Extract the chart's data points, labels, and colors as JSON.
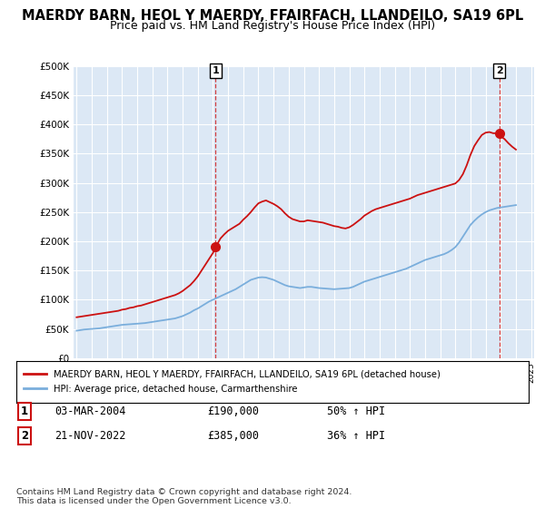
{
  "title": "MAERDY BARN, HEOL Y MAERDY, FFAIRFACH, LLANDEILO, SA19 6PL",
  "subtitle": "Price paid vs. HM Land Registry's House Price Index (HPI)",
  "title_fontsize": 10.5,
  "subtitle_fontsize": 9,
  "ylim": [
    0,
    500000
  ],
  "yticks": [
    0,
    50000,
    100000,
    150000,
    200000,
    250000,
    300000,
    350000,
    400000,
    450000,
    500000
  ],
  "ytick_labels": [
    "£0",
    "£50K",
    "£100K",
    "£150K",
    "£200K",
    "£250K",
    "£300K",
    "£350K",
    "£400K",
    "£450K",
    "£500K"
  ],
  "x_start_year": 1995,
  "x_end_year": 2025,
  "hpi_color": "#7aaedc",
  "price_color": "#cc1111",
  "vline_color": "#cc1111",
  "marker1_year": 2004.17,
  "marker1_value": 190000,
  "marker2_year": 2022.9,
  "marker2_value": 385000,
  "legend_line1": "MAERDY BARN, HEOL Y MAERDY, FFAIRFACH, LLANDEILO, SA19 6PL (detached house)",
  "legend_line2": "HPI: Average price, detached house, Carmarthenshire",
  "table_rows": [
    {
      "num": "1",
      "date": "03-MAR-2004",
      "price": "£190,000",
      "hpi": "50% ↑ HPI"
    },
    {
      "num": "2",
      "date": "21-NOV-2022",
      "price": "£385,000",
      "hpi": "36% ↑ HPI"
    }
  ],
  "footnote": "Contains HM Land Registry data © Crown copyright and database right 2024.\nThis data is licensed under the Open Government Licence v3.0.",
  "plot_background": "#dce8f5",
  "red_x": [
    1995.0,
    1995.25,
    1995.5,
    1995.75,
    1996.0,
    1996.25,
    1996.5,
    1996.75,
    1997.0,
    1997.25,
    1997.5,
    1997.75,
    1998.0,
    1998.25,
    1998.5,
    1998.75,
    1999.0,
    1999.25,
    1999.5,
    1999.75,
    2000.0,
    2000.25,
    2000.5,
    2000.75,
    2001.0,
    2001.25,
    2001.5,
    2001.75,
    2002.0,
    2002.25,
    2002.5,
    2002.75,
    2003.0,
    2003.25,
    2003.5,
    2003.75,
    2004.0,
    2004.17,
    2004.5,
    2004.75,
    2005.0,
    2005.25,
    2005.5,
    2005.75,
    2006.0,
    2006.25,
    2006.5,
    2006.75,
    2007.0,
    2007.25,
    2007.5,
    2007.75,
    2008.0,
    2008.25,
    2008.5,
    2008.75,
    2009.0,
    2009.25,
    2009.5,
    2009.75,
    2010.0,
    2010.25,
    2010.5,
    2010.75,
    2011.0,
    2011.25,
    2011.5,
    2011.75,
    2012.0,
    2012.25,
    2012.5,
    2012.75,
    2013.0,
    2013.25,
    2013.5,
    2013.75,
    2014.0,
    2014.25,
    2014.5,
    2014.75,
    2015.0,
    2015.25,
    2015.5,
    2015.75,
    2016.0,
    2016.25,
    2016.5,
    2016.75,
    2017.0,
    2017.25,
    2017.5,
    2017.75,
    2018.0,
    2018.25,
    2018.5,
    2018.75,
    2019.0,
    2019.25,
    2019.5,
    2019.75,
    2020.0,
    2020.25,
    2020.5,
    2020.75,
    2021.0,
    2021.25,
    2021.5,
    2021.75,
    2022.0,
    2022.25,
    2022.5,
    2022.9,
    2023.0,
    2023.25,
    2023.5,
    2023.75,
    2024.0
  ],
  "red_y": [
    70000,
    71000,
    72000,
    73000,
    74000,
    75000,
    76000,
    77000,
    78000,
    79000,
    80000,
    81000,
    83000,
    84000,
    86000,
    87000,
    89000,
    90000,
    92000,
    94000,
    96000,
    98000,
    100000,
    102000,
    104000,
    106000,
    108000,
    111000,
    115000,
    120000,
    125000,
    132000,
    140000,
    150000,
    160000,
    170000,
    180000,
    190000,
    205000,
    212000,
    218000,
    222000,
    226000,
    230000,
    237000,
    243000,
    250000,
    258000,
    265000,
    268000,
    270000,
    267000,
    264000,
    260000,
    255000,
    248000,
    242000,
    238000,
    236000,
    234000,
    234000,
    236000,
    235000,
    234000,
    233000,
    232000,
    230000,
    228000,
    226000,
    225000,
    223000,
    222000,
    224000,
    228000,
    233000,
    238000,
    244000,
    248000,
    252000,
    255000,
    257000,
    259000,
    261000,
    263000,
    265000,
    267000,
    269000,
    271000,
    273000,
    276000,
    279000,
    281000,
    283000,
    285000,
    287000,
    289000,
    291000,
    293000,
    295000,
    297000,
    299000,
    305000,
    315000,
    330000,
    348000,
    363000,
    373000,
    382000,
    386000,
    387000,
    385000,
    385000,
    380000,
    375000,
    368000,
    362000,
    357000
  ],
  "blue_x": [
    1995.0,
    1995.25,
    1995.5,
    1995.75,
    1996.0,
    1996.25,
    1996.5,
    1996.75,
    1997.0,
    1997.25,
    1997.5,
    1997.75,
    1998.0,
    1998.25,
    1998.5,
    1998.75,
    1999.0,
    1999.25,
    1999.5,
    1999.75,
    2000.0,
    2000.25,
    2000.5,
    2000.75,
    2001.0,
    2001.25,
    2001.5,
    2001.75,
    2002.0,
    2002.25,
    2002.5,
    2002.75,
    2003.0,
    2003.25,
    2003.5,
    2003.75,
    2004.0,
    2004.25,
    2004.5,
    2004.75,
    2005.0,
    2005.25,
    2005.5,
    2005.75,
    2006.0,
    2006.25,
    2006.5,
    2006.75,
    2007.0,
    2007.25,
    2007.5,
    2007.75,
    2008.0,
    2008.25,
    2008.5,
    2008.75,
    2009.0,
    2009.25,
    2009.5,
    2009.75,
    2010.0,
    2010.25,
    2010.5,
    2010.75,
    2011.0,
    2011.25,
    2011.5,
    2011.75,
    2012.0,
    2012.25,
    2012.5,
    2012.75,
    2013.0,
    2013.25,
    2013.5,
    2013.75,
    2014.0,
    2014.25,
    2014.5,
    2014.75,
    2015.0,
    2015.25,
    2015.5,
    2015.75,
    2016.0,
    2016.25,
    2016.5,
    2016.75,
    2017.0,
    2017.25,
    2017.5,
    2017.75,
    2018.0,
    2018.25,
    2018.5,
    2018.75,
    2019.0,
    2019.25,
    2019.5,
    2019.75,
    2020.0,
    2020.25,
    2020.5,
    2020.75,
    2021.0,
    2021.25,
    2021.5,
    2021.75,
    2022.0,
    2022.25,
    2022.5,
    2022.75,
    2023.0,
    2023.25,
    2023.5,
    2023.75,
    2024.0
  ],
  "blue_y": [
    47000,
    48000,
    49000,
    49500,
    50000,
    50500,
    51000,
    52000,
    53000,
    54000,
    55000,
    56000,
    57000,
    57500,
    58000,
    58500,
    59000,
    59500,
    60000,
    61000,
    62000,
    63000,
    64000,
    65000,
    66000,
    67000,
    68000,
    70000,
    72000,
    75000,
    78000,
    82000,
    85000,
    89000,
    93000,
    97000,
    100000,
    103000,
    106000,
    109000,
    112000,
    115000,
    118000,
    122000,
    126000,
    130000,
    134000,
    136000,
    138000,
    138500,
    138000,
    136000,
    134000,
    131000,
    128000,
    125000,
    123000,
    122000,
    121000,
    120000,
    121000,
    122000,
    122000,
    121000,
    120000,
    119500,
    119000,
    118500,
    118000,
    118500,
    119000,
    119500,
    120000,
    122000,
    125000,
    128000,
    131000,
    133000,
    135000,
    137000,
    139000,
    141000,
    143000,
    145000,
    147000,
    149000,
    151000,
    153000,
    156000,
    159000,
    162000,
    165000,
    168000,
    170000,
    172000,
    174000,
    176000,
    178000,
    181000,
    185000,
    190000,
    198000,
    208000,
    218000,
    228000,
    235000,
    241000,
    246000,
    250000,
    253000,
    255000,
    257000,
    258000,
    259000,
    260000,
    261000,
    262000
  ]
}
